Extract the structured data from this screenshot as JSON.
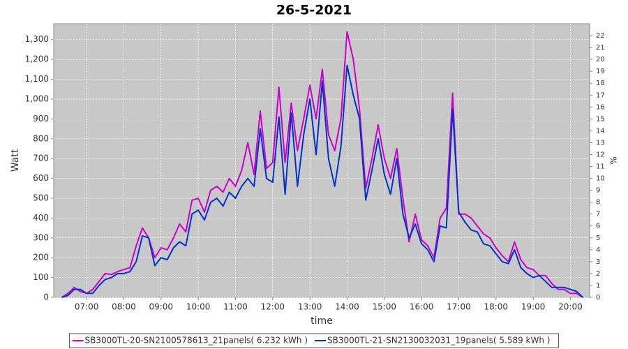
{
  "chart_data": {
    "type": "line",
    "title": "26-5-2021",
    "xlabel": "time",
    "ylabel": "Watt",
    "y2label": "%",
    "x": [
      "06:20",
      "06:30",
      "06:40",
      "06:50",
      "07:00",
      "07:10",
      "07:20",
      "07:30",
      "07:40",
      "07:50",
      "08:00",
      "08:10",
      "08:20",
      "08:30",
      "08:40",
      "08:50",
      "09:00",
      "09:10",
      "09:20",
      "09:30",
      "09:40",
      "09:50",
      "10:00",
      "10:10",
      "10:20",
      "10:30",
      "10:40",
      "10:50",
      "11:00",
      "11:10",
      "11:20",
      "11:30",
      "11:40",
      "11:50",
      "12:00",
      "12:10",
      "12:20",
      "12:30",
      "12:40",
      "12:50",
      "13:00",
      "13:10",
      "13:20",
      "13:30",
      "13:40",
      "13:50",
      "14:00",
      "14:10",
      "14:20",
      "14:30",
      "14:40",
      "14:50",
      "15:00",
      "15:10",
      "15:20",
      "15:30",
      "15:40",
      "15:50",
      "16:00",
      "16:10",
      "16:20",
      "16:30",
      "16:40",
      "16:50",
      "17:00",
      "17:10",
      "17:20",
      "17:30",
      "17:40",
      "17:50",
      "18:00",
      "18:10",
      "18:20",
      "18:30",
      "18:40",
      "18:50",
      "19:00",
      "19:10",
      "19:20",
      "19:30",
      "19:40",
      "19:50",
      "20:00",
      "20:10",
      "20:20"
    ],
    "series": [
      {
        "name": "SB3000TL-20-SN2100578613_21panels( 6.232 kWh )",
        "color": "#cc00cc",
        "values": [
          0,
          20,
          50,
          30,
          20,
          40,
          80,
          120,
          115,
          130,
          140,
          150,
          260,
          350,
          300,
          200,
          250,
          240,
          300,
          370,
          330,
          490,
          500,
          430,
          540,
          560,
          530,
          600,
          560,
          640,
          780,
          620,
          940,
          650,
          680,
          1060,
          680,
          980,
          740,
          900,
          1070,
          900,
          1150,
          820,
          740,
          900,
          1340,
          1200,
          950,
          550,
          700,
          870,
          700,
          600,
          750,
          500,
          280,
          420,
          290,
          260,
          200,
          400,
          450,
          1030,
          420,
          420,
          400,
          360,
          320,
          300,
          250,
          210,
          180,
          280,
          190,
          150,
          140,
          110,
          110,
          70,
          40,
          40,
          20,
          20,
          0
        ]
      },
      {
        "name": "SB3000TL-21-SN2130032031_19panels( 5.589 kWh )",
        "color": "#0033cc",
        "values": [
          0,
          10,
          40,
          40,
          20,
          20,
          60,
          90,
          100,
          120,
          120,
          130,
          180,
          310,
          300,
          160,
          200,
          190,
          250,
          280,
          260,
          420,
          440,
          390,
          480,
          500,
          460,
          530,
          500,
          560,
          600,
          560,
          850,
          600,
          580,
          910,
          520,
          930,
          560,
          820,
          1000,
          720,
          1090,
          700,
          560,
          760,
          1170,
          1020,
          900,
          490,
          640,
          800,
          620,
          520,
          700,
          420,
          300,
          370,
          270,
          240,
          180,
          360,
          350,
          950,
          430,
          380,
          340,
          330,
          270,
          260,
          220,
          180,
          170,
          240,
          150,
          120,
          100,
          110,
          80,
          50,
          50,
          50,
          40,
          30,
          0
        ]
      }
    ],
    "xlim": [
      "06:07",
      "20:31"
    ],
    "xticks": [
      "07:00",
      "08:00",
      "09:00",
      "10:00",
      "11:00",
      "12:00",
      "13:00",
      "14:00",
      "15:00",
      "16:00",
      "17:00",
      "18:00",
      "19:00",
      "20:00"
    ],
    "ylim": [
      0,
      1380
    ],
    "yticks": [
      0,
      100,
      200,
      300,
      400,
      500,
      600,
      700,
      800,
      900,
      {
        "value": 1000,
        "label": "1,000"
      },
      {
        "value": 1100,
        "label": "1,100"
      },
      {
        "value": 1200,
        "label": "1,200"
      },
      {
        "value": 1300,
        "label": "1,300"
      }
    ],
    "y2lim": [
      0,
      23
    ],
    "y2ticks": [
      0,
      1,
      2,
      3,
      4,
      5,
      6,
      7,
      8,
      9,
      10,
      11,
      12,
      13,
      14,
      15,
      16,
      17,
      18,
      19,
      20,
      21,
      22
    ],
    "grid": true,
    "legend": "bottom"
  }
}
